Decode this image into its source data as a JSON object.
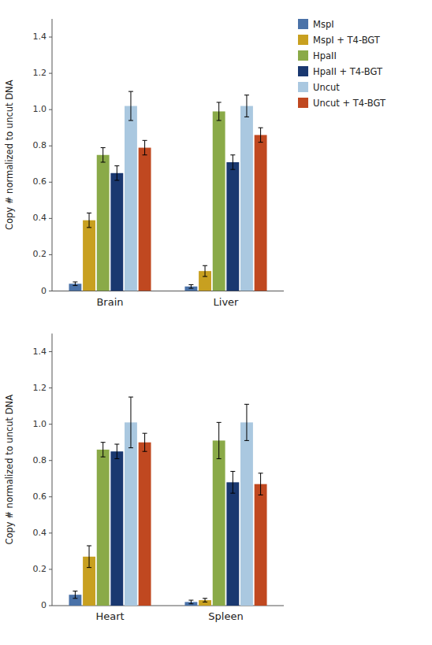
{
  "chart_data": [
    {
      "type": "bar",
      "categories": [
        "Brain",
        "Liver"
      ],
      "ylabel": "Copy # normalized to uncut DNA",
      "ylim": [
        0,
        1.5
      ],
      "yticks": [
        0,
        0.2,
        0.4,
        0.6,
        0.8,
        {
          "value": 1.0,
          "label": "1.0"
        },
        1.2,
        1.4
      ],
      "legend": "right",
      "series": [
        {
          "name": "MspI",
          "color": "#4a72a8",
          "values": [
            0.04,
            0.025
          ],
          "errors": [
            0.01,
            0.01
          ]
        },
        {
          "name": "MspI + T4-BGT",
          "color": "#c8a020",
          "values": [
            0.39,
            0.11
          ],
          "errors": [
            0.04,
            0.03
          ]
        },
        {
          "name": "HpaII",
          "color": "#8aaa48",
          "values": [
            0.75,
            0.99
          ],
          "errors": [
            0.04,
            0.05
          ]
        },
        {
          "name": "HpaII + T4-BGT",
          "color": "#1a3870",
          "values": [
            0.65,
            0.71
          ],
          "errors": [
            0.04,
            0.04
          ]
        },
        {
          "name": "Uncut",
          "color": "#aac8e0",
          "values": [
            1.02,
            1.02
          ],
          "errors": [
            0.08,
            0.06
          ]
        },
        {
          "name": "Uncut + T4-BGT",
          "color": "#c04820",
          "values": [
            0.79,
            0.86
          ],
          "errors": [
            0.04,
            0.04
          ]
        }
      ]
    },
    {
      "type": "bar",
      "categories": [
        "Heart",
        "Spleen"
      ],
      "ylabel": "Copy # normalized to uncut DNA",
      "ylim": [
        0,
        1.5
      ],
      "yticks": [
        0,
        0.2,
        0.4,
        0.6,
        0.8,
        {
          "value": 1.0,
          "label": "1.0"
        },
        1.2,
        1.4
      ],
      "series": [
        {
          "name": "MspI",
          "color": "#4a72a8",
          "values": [
            0.06,
            0.02
          ],
          "errors": [
            0.02,
            0.01
          ]
        },
        {
          "name": "MspI + T4-BGT",
          "color": "#c8a020",
          "values": [
            0.27,
            0.03
          ],
          "errors": [
            0.06,
            0.01
          ]
        },
        {
          "name": "HpaII",
          "color": "#8aaa48",
          "values": [
            0.86,
            0.91
          ],
          "errors": [
            0.04,
            0.1
          ]
        },
        {
          "name": "HpaII + T4-BGT",
          "color": "#1a3870",
          "values": [
            0.85,
            0.68
          ],
          "errors": [
            0.04,
            0.06
          ]
        },
        {
          "name": "Uncut",
          "color": "#aac8e0",
          "values": [
            1.01,
            1.01
          ],
          "errors": [
            0.14,
            0.1
          ]
        },
        {
          "name": "Uncut + T4-BGT",
          "color": "#c04820",
          "values": [
            0.9,
            0.67
          ],
          "errors": [
            0.05,
            0.06
          ]
        }
      ]
    }
  ]
}
